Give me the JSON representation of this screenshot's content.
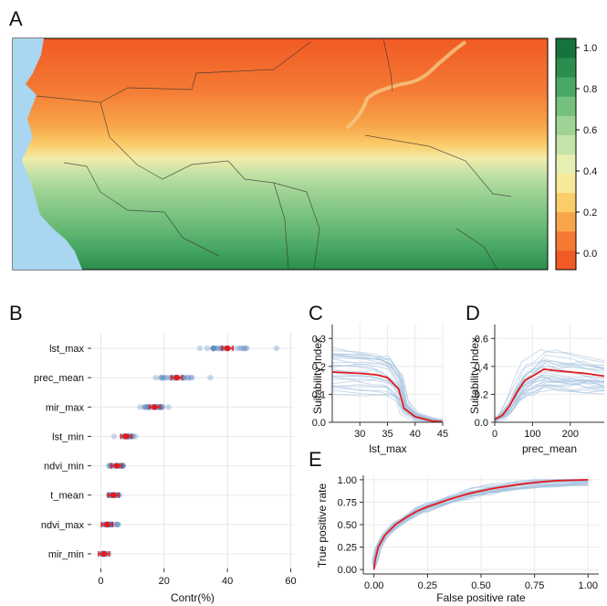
{
  "figure": {
    "panel_letters": [
      "A",
      "B",
      "C",
      "D",
      "E"
    ]
  },
  "map": {
    "colorbar_ticks": [
      "1.0",
      "0.8",
      "0.6",
      "0.4",
      "0.2",
      "0.0"
    ],
    "colorbar_colors": [
      "#f15a24",
      "#f47a34",
      "#f8a54a",
      "#fbcd69",
      "#f7e89a",
      "#e6f0b3",
      "#c5e3a6",
      "#9fd394",
      "#74c07c",
      "#4aa865",
      "#2b8e4e",
      "#17733c"
    ],
    "water_color": "#a9d6f0"
  },
  "chart_data": [
    {
      "panel": "B",
      "type": "scatter",
      "xlabel": "Contr(%)",
      "ylabel": "",
      "xlim": [
        -3,
        61
      ],
      "x_ticks": [
        0,
        20,
        40,
        60
      ],
      "categories": [
        "lst_max",
        "prec_mean",
        "mir_max",
        "lst_min",
        "ndvi_min",
        "t_mean",
        "ndvi_max",
        "mir_min"
      ],
      "means": [
        40,
        24,
        17,
        8,
        5,
        4,
        2,
        1
      ],
      "ranges": [
        [
          27,
          58
        ],
        [
          16,
          39
        ],
        [
          12,
          23
        ],
        [
          4,
          13
        ],
        [
          2,
          11
        ],
        [
          0,
          9
        ],
        [
          0,
          6
        ],
        [
          0,
          3
        ]
      ],
      "point_color": "#4f81bd",
      "mean_color": "#e31a1c"
    },
    {
      "panel": "C",
      "type": "line",
      "xlabel": "lst_max",
      "ylabel": "Suitability Index",
      "xlim": [
        25,
        45
      ],
      "ylim": [
        0,
        0.35
      ],
      "x_ticks": [
        30,
        35,
        40,
        45
      ],
      "y_ticks": [
        0.0,
        0.1,
        0.2,
        0.3
      ],
      "series": [
        {
          "values": [
            [
              25,
              0.18
            ],
            [
              30,
              0.175
            ],
            [
              33,
              0.17
            ],
            [
              35,
              0.16
            ],
            [
              37,
              0.12
            ],
            [
              38,
              0.05
            ],
            [
              40,
              0.02
            ],
            [
              43,
              0.005
            ],
            [
              45,
              0.002
            ]
          ]
        }
      ],
      "line_color": "#e31a1c",
      "band_color": "#a7c3e0"
    },
    {
      "panel": "D",
      "type": "line",
      "xlabel": "prec_mean",
      "ylabel": "Suitability Index",
      "xlim": [
        0,
        290
      ],
      "ylim": [
        0,
        0.7
      ],
      "x_ticks": [
        0,
        100,
        200
      ],
      "y_ticks": [
        0.0,
        0.2,
        0.4,
        0.6
      ],
      "series": [
        {
          "values": [
            [
              0,
              0.02
            ],
            [
              20,
              0.05
            ],
            [
              40,
              0.12
            ],
            [
              60,
              0.22
            ],
            [
              80,
              0.3
            ],
            [
              100,
              0.33
            ],
            [
              130,
              0.38
            ],
            [
              160,
              0.37
            ],
            [
              200,
              0.36
            ],
            [
              240,
              0.35
            ],
            [
              290,
              0.33
            ]
          ]
        }
      ],
      "line_color": "#e31a1c",
      "band_color": "#a7c3e0"
    },
    {
      "panel": "E",
      "type": "line",
      "xlabel": "False positive rate",
      "ylabel": "True positive rate",
      "xlim": [
        -0.05,
        1.05
      ],
      "ylim": [
        -0.05,
        1.05
      ],
      "x_ticks": [
        0.0,
        0.25,
        0.5,
        0.75,
        1.0
      ],
      "y_ticks": [
        0.0,
        0.25,
        0.5,
        0.75,
        1.0
      ],
      "series": [
        {
          "values": [
            [
              0,
              0
            ],
            [
              0.005,
              0.1
            ],
            [
              0.02,
              0.25
            ],
            [
              0.05,
              0.38
            ],
            [
              0.1,
              0.5
            ],
            [
              0.15,
              0.58
            ],
            [
              0.2,
              0.65
            ],
            [
              0.25,
              0.7
            ],
            [
              0.35,
              0.78
            ],
            [
              0.45,
              0.85
            ],
            [
              0.55,
              0.9
            ],
            [
              0.65,
              0.94
            ],
            [
              0.75,
              0.97
            ],
            [
              0.85,
              0.99
            ],
            [
              1.0,
              1.0
            ]
          ]
        }
      ],
      "line_color": "#e31a1c",
      "band_color": "#a7c3e0"
    }
  ]
}
